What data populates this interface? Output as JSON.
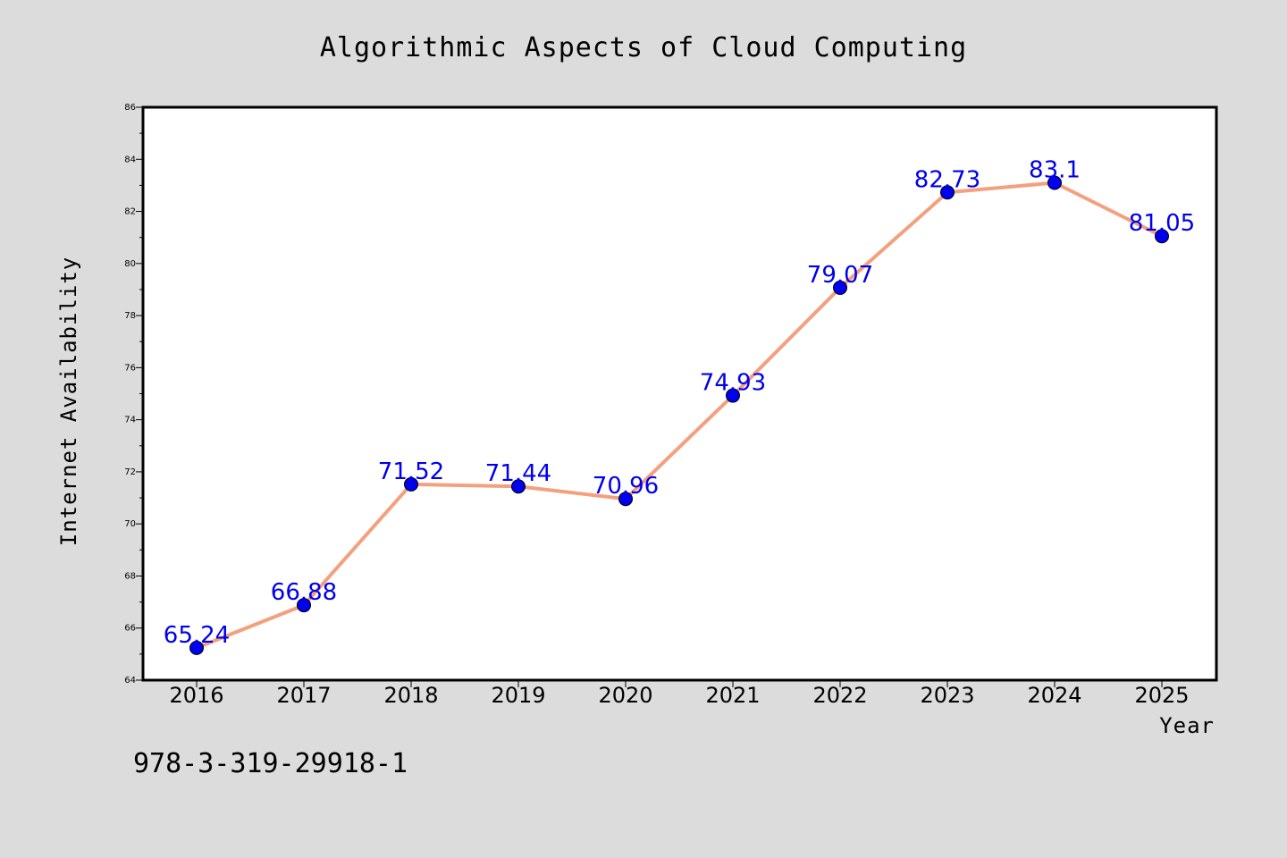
{
  "chart_data": {
    "type": "line",
    "title": "Algorithmic Aspects of Cloud Computing",
    "xlabel": "Year",
    "ylabel": "Internet Availability",
    "categories": [
      "2016",
      "2017",
      "2018",
      "2019",
      "2020",
      "2021",
      "2022",
      "2023",
      "2024",
      "2025"
    ],
    "series": [
      {
        "values": [
          65.24,
          66.88,
          71.52,
          71.44,
          70.96,
          74.93,
          79.07,
          82.73,
          83.1,
          81.05
        ],
        "data_labels": [
          "65.24",
          "66.88",
          "71.52",
          "71.44",
          "70.96",
          "74.93",
          "79.07",
          "82.73",
          "83.1",
          "81.05"
        ],
        "line_color": "#f4a07e",
        "marker_color": "#0000ee",
        "label_color": "#0000ee"
      }
    ],
    "ylim": [
      64,
      86
    ],
    "y_major_ticks": [
      64,
      66,
      68,
      70,
      72,
      74,
      76,
      78,
      80,
      82,
      84,
      86
    ],
    "y_tick_labels": [
      "64",
      "66",
      "68",
      "70",
      "72",
      "74",
      "76",
      "78",
      "80",
      "82",
      "84",
      "86"
    ],
    "grid": false,
    "legend": "none"
  },
  "annotation": "978-3-319-29918-1",
  "colors": {
    "figure_background": "#dcdcdc",
    "plot_background": "#ffffff",
    "axes_frame": "#000000"
  }
}
